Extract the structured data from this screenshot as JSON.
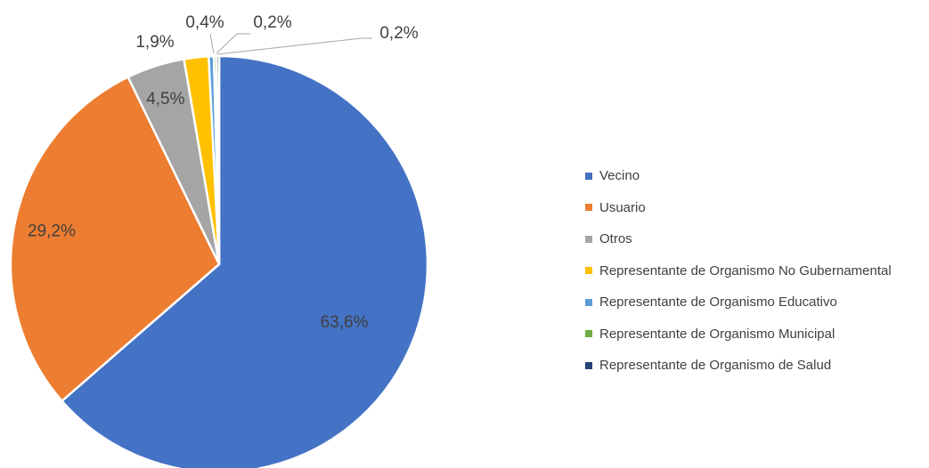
{
  "chart_data": {
    "type": "pie",
    "categories": [
      "Vecino",
      "Usuario",
      "Otros",
      "Representante de Organismo No Gubernamental",
      "Representante de Organismo Educativo",
      "Representante de Organismo Municipal",
      "Representante de Organismo de Salud"
    ],
    "values": [
      63.6,
      29.2,
      4.5,
      1.9,
      0.4,
      0.2,
      0.2
    ],
    "labels": [
      "63,6%",
      "29,2%",
      "4,5%",
      "1,9%",
      "0,4%",
      "0,2%",
      "0,2%"
    ],
    "colors": [
      "#4472C4",
      "#ED7D31",
      "#A5A5A5",
      "#FFC000",
      "#5B9BD5",
      "#70AD47",
      "#264478"
    ],
    "legend_position": "right",
    "start_angle": "top-clockwise"
  }
}
